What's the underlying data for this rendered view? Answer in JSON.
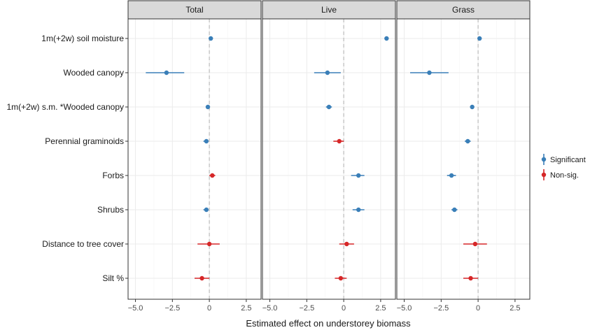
{
  "chart_data": {
    "type": "scatter",
    "subtype": "coefficient-plot-with-intervals",
    "xlabel": "Estimated effect on understorey biomass",
    "xlim": [
      -5.5,
      3.5
    ],
    "xticks": [
      -5.0,
      -2.5,
      0,
      2.5
    ],
    "xtick_labels": [
      "−5.0",
      "−2.5",
      "0",
      "2.5"
    ],
    "zero_line": true,
    "grid": true,
    "legend_position": "right",
    "colors": {
      "significant": "#3a7fb8",
      "nonsig": "#d62728"
    },
    "legend": [
      {
        "key": "significant",
        "label": "Significant"
      },
      {
        "key": "nonsig",
        "label": "Non-sig."
      }
    ],
    "terms": [
      "1m(+2w) soil moisture",
      "Wooded canopy",
      "1m(+2w) s.m. *Wooded canopy",
      "Perennial graminoids",
      "Forbs",
      "Shrubs",
      "Distance to tree cover",
      "Silt %"
    ],
    "panels": [
      {
        "title": "Total",
        "points": [
          {
            "term": 0,
            "est": 0.1,
            "lo": 0.0,
            "hi": 0.2,
            "sig": true
          },
          {
            "term": 1,
            "est": -2.9,
            "lo": -4.3,
            "hi": -1.7,
            "sig": true
          },
          {
            "term": 2,
            "est": -0.1,
            "lo": -0.2,
            "hi": 0.0,
            "sig": true
          },
          {
            "term": 3,
            "est": -0.2,
            "lo": -0.4,
            "hi": -0.05,
            "sig": true
          },
          {
            "term": 4,
            "est": 0.2,
            "lo": 0.0,
            "hi": 0.4,
            "sig": false
          },
          {
            "term": 5,
            "est": -0.2,
            "lo": -0.4,
            "hi": -0.05,
            "sig": true
          },
          {
            "term": 6,
            "est": 0.0,
            "lo": -0.8,
            "hi": 0.7,
            "sig": false
          },
          {
            "term": 7,
            "est": -0.5,
            "lo": -1.0,
            "hi": 0.0,
            "sig": false
          }
        ]
      },
      {
        "title": "Live",
        "points": [
          {
            "term": 0,
            "est": 2.9,
            "lo": 2.8,
            "hi": 3.0,
            "sig": true
          },
          {
            "term": 1,
            "est": -1.1,
            "lo": -2.0,
            "hi": -0.2,
            "sig": true
          },
          {
            "term": 2,
            "est": -1.0,
            "lo": -1.2,
            "hi": -0.8,
            "sig": true
          },
          {
            "term": 3,
            "est": -0.3,
            "lo": -0.7,
            "hi": 0.0,
            "sig": false
          },
          {
            "term": 4,
            "est": 1.0,
            "lo": 0.5,
            "hi": 1.4,
            "sig": true
          },
          {
            "term": 5,
            "est": 1.0,
            "lo": 0.6,
            "hi": 1.4,
            "sig": true
          },
          {
            "term": 6,
            "est": 0.2,
            "lo": -0.3,
            "hi": 0.7,
            "sig": false
          },
          {
            "term": 7,
            "est": -0.2,
            "lo": -0.6,
            "hi": 0.2,
            "sig": false
          }
        ]
      },
      {
        "title": "Grass",
        "points": [
          {
            "term": 0,
            "est": 0.1,
            "lo": 0.0,
            "hi": 0.2,
            "sig": true
          },
          {
            "term": 1,
            "est": -3.3,
            "lo": -4.6,
            "hi": -2.0,
            "sig": true
          },
          {
            "term": 2,
            "est": -0.4,
            "lo": -0.5,
            "hi": -0.3,
            "sig": true
          },
          {
            "term": 3,
            "est": -0.7,
            "lo": -0.9,
            "hi": -0.5,
            "sig": true
          },
          {
            "term": 4,
            "est": -1.8,
            "lo": -2.1,
            "hi": -1.5,
            "sig": true
          },
          {
            "term": 5,
            "est": -1.6,
            "lo": -1.8,
            "hi": -1.4,
            "sig": true
          },
          {
            "term": 6,
            "est": -0.2,
            "lo": -1.0,
            "hi": 0.6,
            "sig": false
          },
          {
            "term": 7,
            "est": -0.5,
            "lo": -1.0,
            "hi": 0.0,
            "sig": false
          }
        ]
      }
    ]
  }
}
